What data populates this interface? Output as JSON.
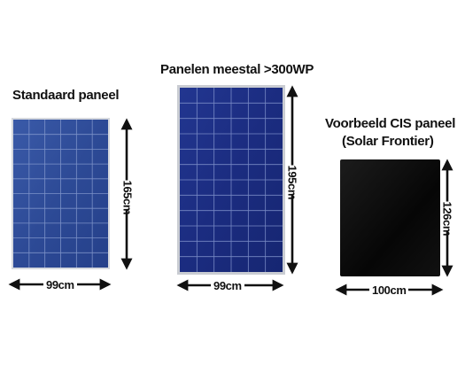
{
  "panels": [
    {
      "title": "Standaard paneel",
      "width_label": "99cm",
      "height_label": "165cm",
      "type": "polycrystalline",
      "cell_color": "#2f4f9a",
      "grid": {
        "cols": 6,
        "rows": 10
      }
    },
    {
      "title": "Panelen meestal >300WP",
      "width_label": "99cm",
      "height_label": "195cm",
      "type": "polycrystalline",
      "cell_color": "#1e2f82",
      "grid": {
        "cols": 6,
        "rows": 12
      }
    },
    {
      "title_line1": "Voorbeeld CIS paneel",
      "title_line2": "(Solar Frontier)",
      "width_label": "100cm",
      "height_label": "126cm",
      "type": "CIS",
      "cell_color": "#0a0a0a"
    }
  ],
  "colors": {
    "arrow": "#111111",
    "frame": "#c9ccd2",
    "grid_line": "#9fb0d8"
  }
}
